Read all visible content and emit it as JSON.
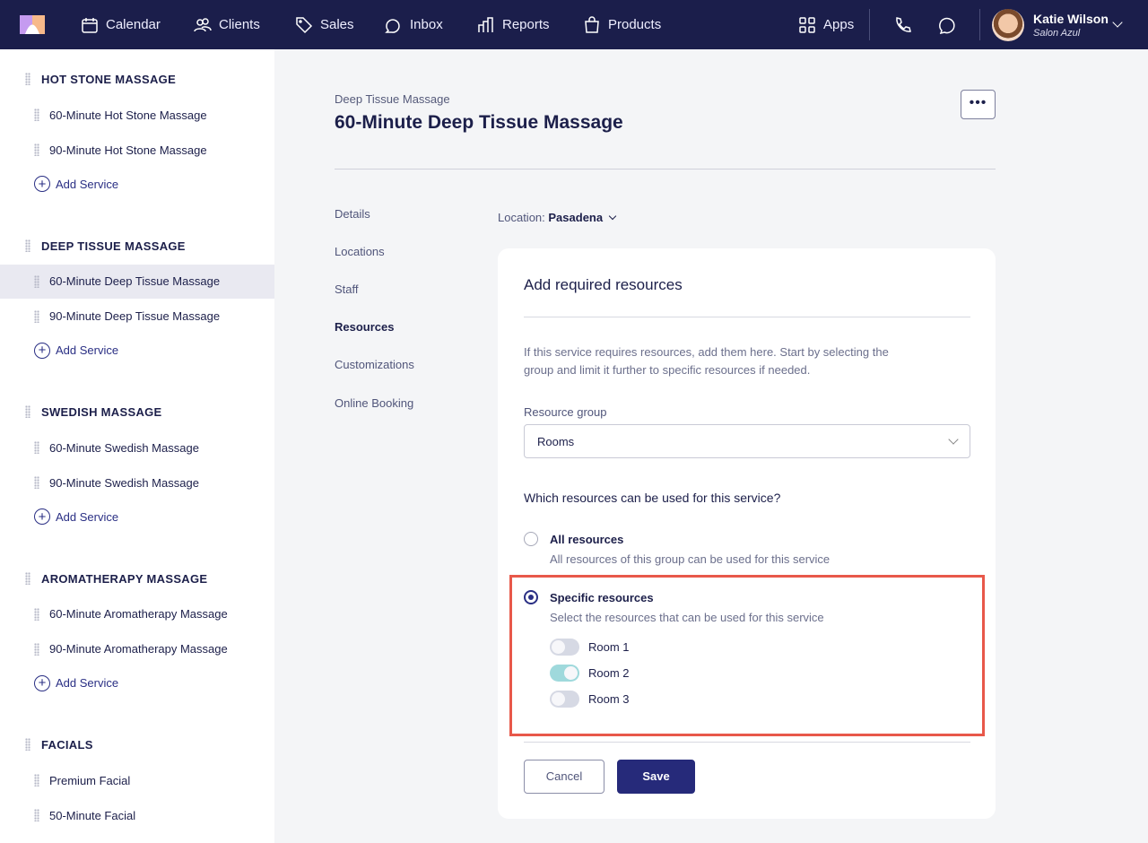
{
  "nav": {
    "items": [
      {
        "label": "Calendar",
        "icon": "calendar-icon"
      },
      {
        "label": "Clients",
        "icon": "clients-icon"
      },
      {
        "label": "Sales",
        "icon": "tag-icon"
      },
      {
        "label": "Inbox",
        "icon": "inbox-icon"
      },
      {
        "label": "Reports",
        "icon": "reports-icon"
      },
      {
        "label": "Products",
        "icon": "bag-icon"
      }
    ],
    "apps": "Apps",
    "user": {
      "name": "Katie Wilson",
      "salon": "Salon Azul"
    }
  },
  "sidebar": {
    "groups": [
      {
        "title": "HOT STONE MASSAGE",
        "items": [
          "60-Minute Hot Stone Massage",
          "90-Minute Hot Stone Massage"
        ]
      },
      {
        "title": "DEEP TISSUE MASSAGE",
        "items": [
          "60-Minute Deep Tissue Massage",
          "90-Minute Deep Tissue Massage"
        ]
      },
      {
        "title": "SWEDISH MASSAGE",
        "items": [
          "60-Minute Swedish Massage",
          "90-Minute Swedish Massage"
        ]
      },
      {
        "title": "AROMATHERAPY MASSAGE",
        "items": [
          "60-Minute Aromatherapy Massage",
          "90-Minute Aromatherapy Massage"
        ]
      },
      {
        "title": "FACIALS",
        "items": [
          "Premium Facial",
          "50-Minute Facial"
        ]
      }
    ],
    "add_label": "Add Service",
    "selected": "60-Minute Deep Tissue Massage"
  },
  "page": {
    "breadcrumb": "Deep Tissue Massage",
    "title": "60-Minute Deep Tissue Massage",
    "more": "•••"
  },
  "tabs": [
    "Details",
    "Locations",
    "Staff",
    "Resources",
    "Customizations",
    "Online Booking"
  ],
  "active_tab": "Resources",
  "location": {
    "label": "Location:",
    "value": "Pasadena"
  },
  "card": {
    "title": "Add required resources",
    "description": "If this service requires resources, add them here. Start by selecting the group and limit it further to specific resources if needed.",
    "group_label": "Resource group",
    "group_value": "Rooms",
    "question": "Which resources can be used for this service?",
    "options": [
      {
        "title": "All resources",
        "desc": "All resources of this group can be used for this service",
        "selected": false
      },
      {
        "title": "Specific resources",
        "desc": "Select the resources that can be used for this service",
        "selected": true
      }
    ],
    "resources": [
      {
        "name": "Room 1",
        "on": false
      },
      {
        "name": "Room 2",
        "on": true
      },
      {
        "name": "Room 3",
        "on": false
      }
    ],
    "cancel": "Cancel",
    "save": "Save"
  },
  "colors": {
    "nav": "#1b1e4b",
    "primary": "#262a7a",
    "toggle_on": "#9fd9dc",
    "highlight": "#e8584a"
  }
}
